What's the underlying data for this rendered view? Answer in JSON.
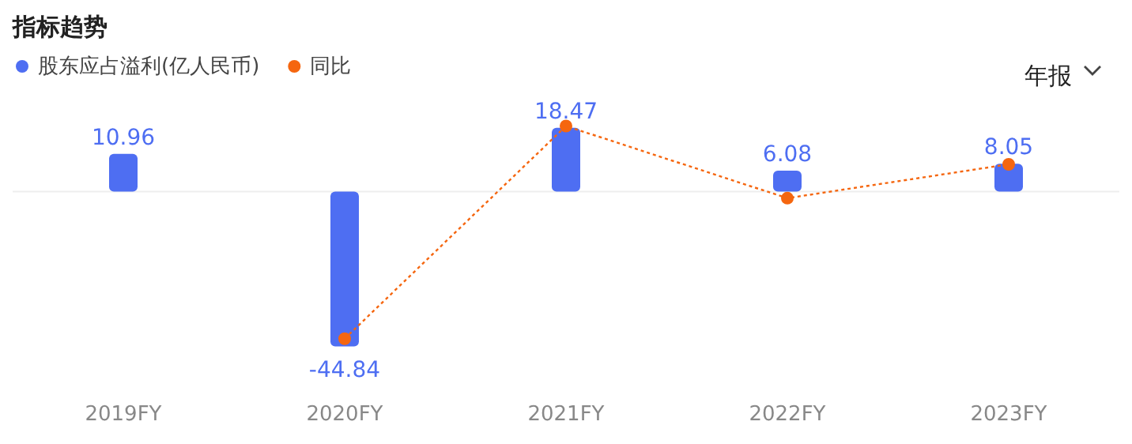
{
  "chart_data": {
    "type": "bar",
    "title": "指标趋势",
    "categories": [
      "2019FY",
      "2020FY",
      "2021FY",
      "2022FY",
      "2023FY"
    ],
    "series": [
      {
        "name": "股东应占溢利(亿人民币)",
        "color": "#4e6ef2",
        "values": [
          10.96,
          -44.84,
          18.47,
          6.08,
          8.05
        ],
        "value_labels": [
          "10.96",
          "-44.84",
          "18.47",
          "6.08",
          "8.05"
        ]
      },
      {
        "name": "同比",
        "type": "line",
        "color": "#f5660f",
        "marker": "circle",
        "line_style": "dotted",
        "values": [
          null,
          -42.6,
          19.0,
          -1.9,
          7.9
        ]
      }
    ],
    "legend": "top left",
    "annotations": [
      "年报"
    ]
  }
}
